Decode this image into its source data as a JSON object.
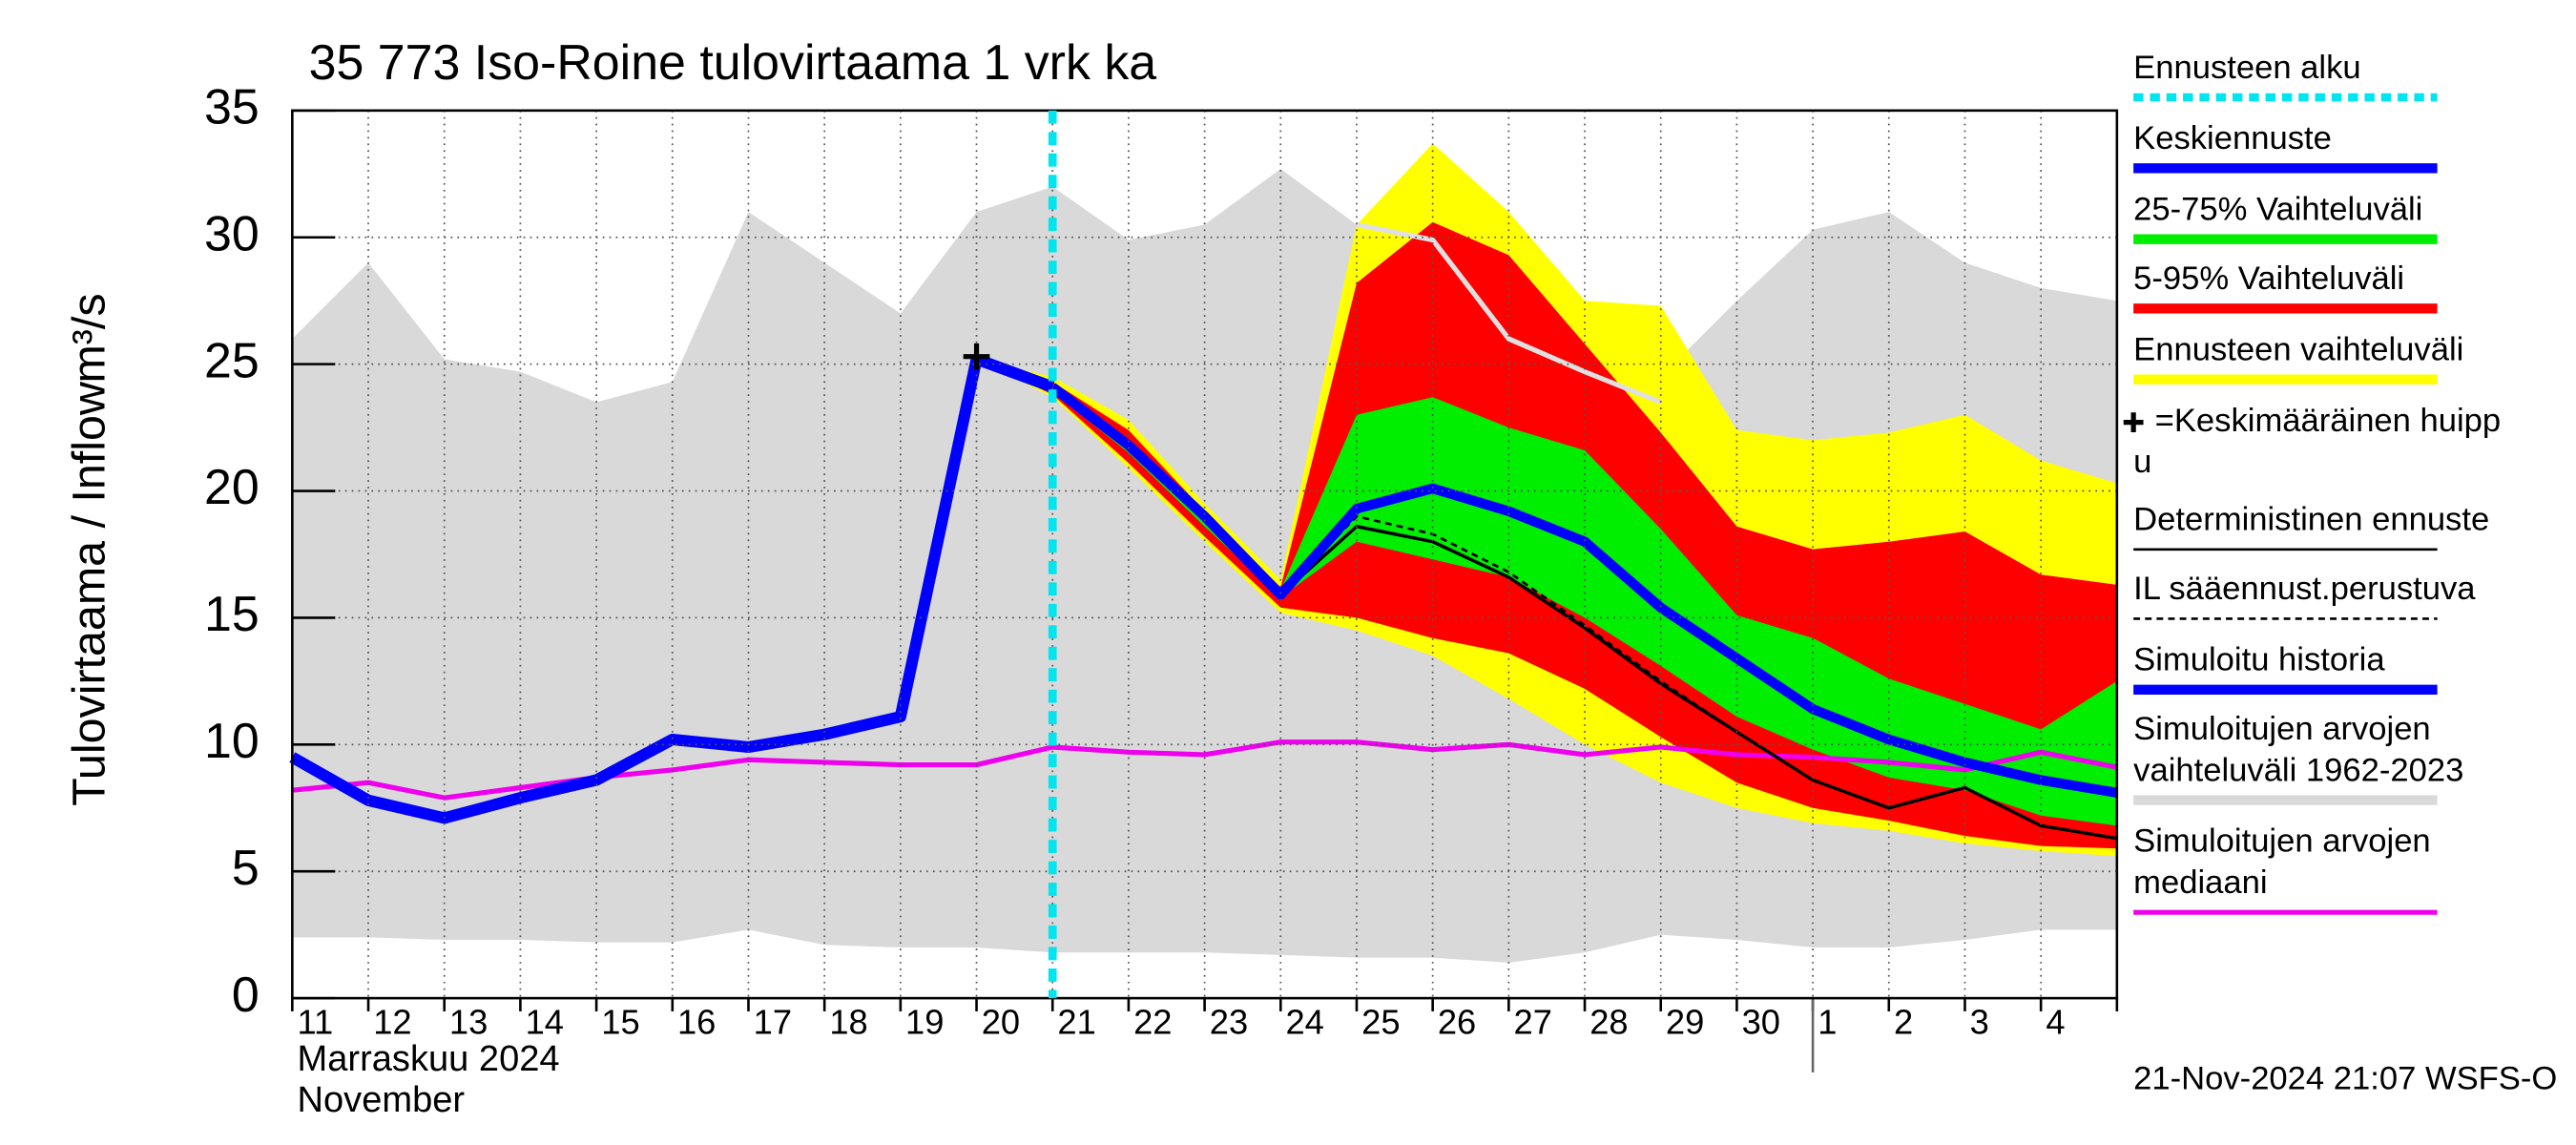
{
  "chart_data": {
    "type": "band-line",
    "title": "35 773 Iso-Roine tulovirtaama 1 vrk ka",
    "ylabel": "Tulovirtaama / Inflow",
    "yunit": "m³/s",
    "month_labels": [
      "Marraskuu 2024",
      "November"
    ],
    "footer": "21-Nov-2024 21:07 WSFS-O",
    "categories": [
      "11",
      "12",
      "13",
      "14",
      "15",
      "16",
      "17",
      "18",
      "19",
      "20",
      "21",
      "22",
      "23",
      "24",
      "25",
      "26",
      "27",
      "28",
      "29",
      "30",
      "1",
      "2",
      "3",
      "4",
      null
    ],
    "ylim": [
      0,
      35
    ],
    "yticks": [
      0,
      5,
      10,
      15,
      20,
      25,
      30,
      35
    ],
    "grid": true,
    "forecast_start": 10,
    "month_boundary": 20,
    "peak": {
      "index": 9,
      "value": 25.3
    },
    "series": [
      {
        "kind": "band",
        "color": "#d9d9d9",
        "upper": [
          26,
          29,
          25.2,
          24.7,
          23.5,
          24.3,
          31,
          29,
          27,
          31,
          32,
          29.9,
          30.5,
          32.7,
          30.5,
          30.3,
          28.5,
          27,
          24.5,
          27.5,
          30.3,
          31,
          29,
          28,
          27.5
        ],
        "lower": [
          2.4,
          2.4,
          2.3,
          2.3,
          2.2,
          2.2,
          2.7,
          2.1,
          2.0,
          2.0,
          1.8,
          1.8,
          1.8,
          1.7,
          1.6,
          1.6,
          1.4,
          1.8,
          2.5,
          2.3,
          2.0,
          2.0,
          2.3,
          2.7,
          2.7
        ]
      },
      {
        "kind": "band",
        "color": "#ffff00",
        "upper": [
          null,
          null,
          null,
          null,
          null,
          null,
          null,
          null,
          null,
          25.2,
          24.5,
          22.8,
          19.5,
          16.5,
          30.5,
          33.7,
          31,
          27.5,
          27.3,
          22.4,
          22,
          22.3,
          23,
          21.2,
          20.3
        ],
        "lower": [
          null,
          null,
          null,
          null,
          null,
          null,
          null,
          null,
          null,
          25.2,
          23.7,
          20.9,
          18,
          15.2,
          14.5,
          13.5,
          11.8,
          10,
          8.5,
          7.5,
          6.9,
          6.6,
          6.1,
          5.8,
          5.6
        ]
      },
      {
        "kind": "band",
        "color": "#ff0000",
        "upper": [
          null,
          null,
          null,
          null,
          null,
          null,
          null,
          null,
          null,
          25.2,
          24.3,
          22.4,
          19.2,
          16.2,
          28.2,
          30.6,
          29.3,
          25.8,
          22.3,
          18.6,
          17.7,
          18.0,
          18.4,
          16.7,
          16.3
        ],
        "lower": [
          null,
          null,
          null,
          null,
          null,
          null,
          null,
          null,
          null,
          25.2,
          23.8,
          21.1,
          18.2,
          15.4,
          15,
          14.2,
          13.6,
          12.2,
          10.3,
          8.5,
          7.5,
          7.0,
          6.4,
          6.0,
          5.9
        ]
      },
      {
        "kind": "band",
        "color": "#00ee00",
        "upper": [
          null,
          null,
          null,
          null,
          null,
          null,
          null,
          null,
          null,
          25.2,
          24.2,
          22,
          19.1,
          16.1,
          23,
          23.7,
          22.5,
          21.6,
          18.5,
          15.1,
          14.2,
          12.6,
          11.6,
          10.6,
          12.5
        ],
        "lower": [
          null,
          null,
          null,
          null,
          null,
          null,
          null,
          null,
          null,
          25.2,
          23.9,
          21.5,
          18.6,
          15.8,
          18,
          17.3,
          16.6,
          15,
          13.1,
          11.1,
          9.8,
          8.7,
          8.2,
          7.2,
          6.8
        ]
      },
      {
        "kind": "line",
        "color": "#e0e0e0",
        "width": 3,
        "values": [
          null,
          null,
          null,
          null,
          null,
          null,
          null,
          null,
          null,
          null,
          null,
          null,
          null,
          null,
          30.5,
          29.9,
          26,
          24.7,
          23.5,
          null,
          null,
          null,
          null,
          null,
          null
        ]
      },
      {
        "kind": "line",
        "color": "#ee00ee",
        "width": 3,
        "values": [
          8.2,
          8.5,
          7.9,
          8.3,
          8.7,
          9.0,
          9.4,
          9.3,
          9.2,
          9.2,
          9.9,
          9.7,
          9.6,
          10.1,
          10.1,
          9.8,
          10.0,
          9.6,
          9.9,
          9.6,
          9.5,
          9.3,
          9.0,
          9.7,
          9.1
        ]
      },
      {
        "kind": "line",
        "color": "#000000",
        "width": 1.5,
        "dash": true,
        "values": [
          null,
          null,
          null,
          null,
          null,
          null,
          null,
          null,
          null,
          null,
          null,
          null,
          null,
          15.9,
          19,
          18.3,
          16.8,
          14.7,
          12.5,
          10.5,
          8.6,
          7.5,
          8.3,
          6.8,
          6.3
        ]
      },
      {
        "kind": "line",
        "color": "#000000",
        "width": 2,
        "values": [
          null,
          null,
          null,
          null,
          null,
          null,
          null,
          null,
          null,
          null,
          null,
          null,
          null,
          15.9,
          18.6,
          18,
          16.6,
          14.6,
          12.4,
          10.5,
          8.6,
          7.5,
          8.3,
          6.8,
          6.3
        ]
      },
      {
        "kind": "line",
        "color": "#0000ff",
        "width": 7,
        "values": [
          9.5,
          7.8,
          7.1,
          7.9,
          8.6,
          10.2,
          9.9,
          10.4,
          11.1,
          25.2,
          24.1,
          null,
          null,
          null,
          null,
          null,
          null,
          null,
          null,
          null,
          null,
          null,
          null,
          null,
          null
        ]
      },
      {
        "kind": "line",
        "color": "#0000ff",
        "width": 6,
        "values": [
          null,
          null,
          null,
          null,
          null,
          null,
          null,
          null,
          null,
          null,
          24.1,
          21.8,
          19,
          15.9,
          19.3,
          20.1,
          19.2,
          18,
          15.4,
          13.4,
          11.4,
          10.2,
          9.3,
          8.6,
          8.1
        ]
      }
    ],
    "legend": [
      {
        "lines": [
          "Ennusteen alku"
        ],
        "color": "#00e5ee",
        "style": "dotted"
      },
      {
        "lines": [
          "Keskiennuste"
        ],
        "color": "#0000ff",
        "style": "thick"
      },
      {
        "lines": [
          "25-75% Vaihteluväli"
        ],
        "color": "#00ee00",
        "style": "thick"
      },
      {
        "lines": [
          "5-95% Vaihteluväli"
        ],
        "color": "#ff0000",
        "style": "thick"
      },
      {
        "lines": [
          "Ennusteen vaihteluväli"
        ],
        "color": "#ffff00",
        "style": "thick"
      },
      {
        "lines": [
          "=Keskimääräinen huipp",
          "u"
        ],
        "color": "#000000",
        "style": "cross"
      },
      {
        "lines": [
          "Deterministinen ennuste"
        ],
        "color": "#000000",
        "style": "thin"
      },
      {
        "lines": [
          "IL sääennust.perustuva"
        ],
        "color": "#000000",
        "style": "dashed"
      },
      {
        "lines": [
          "Simuloitu historia"
        ],
        "color": "#0000ff",
        "style": "thick"
      },
      {
        "lines": [
          "Simuloitujen arvojen",
          "vaihteluväli 1962-2023"
        ],
        "color": "#d9d9d9",
        "style": "thick"
      },
      {
        "lines": [
          "Simuloitujen arvojen",
          "mediaani"
        ],
        "color": "#ee00ee",
        "style": "medium"
      }
    ]
  }
}
